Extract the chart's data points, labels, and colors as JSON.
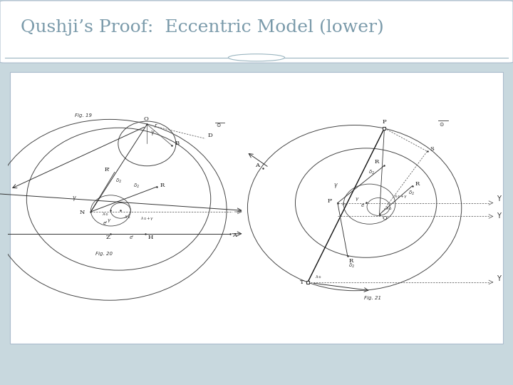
{
  "title": "Qushji’s Proof:  Eccentric Model (lower)",
  "title_color": "#7a9aaa",
  "title_fontsize": 18,
  "fig_label1": "Fig. 19",
  "fig_label2": "Fig. 20",
  "fig_label3": "Fig. 21",
  "bg_slide": "#c8d8de",
  "panel_bg": "#ffffff",
  "panel_border": "#aabbcc",
  "title_bg": "#ffffff",
  "bottom_band": "#8aaab8",
  "sep_color": "#9ab5c0"
}
